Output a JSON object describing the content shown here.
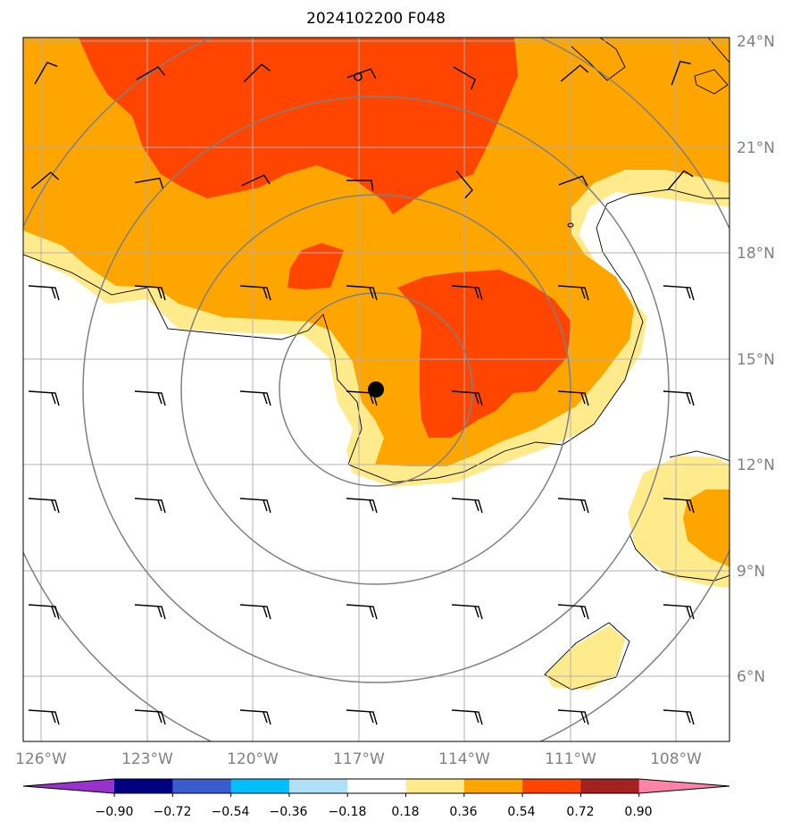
{
  "title": "2024102200 F048",
  "lat_labels": [
    "24°N",
    "21°N",
    "18°N",
    "15°N",
    "12°N",
    "9°N",
    "6°N"
  ],
  "lon_labels": [
    "126°W",
    "123°W",
    "120°W",
    "117°W",
    "114°W",
    "111°W",
    "108°W"
  ],
  "colorbar": {
    "tick_labels": [
      "−0.90",
      "−0.72",
      "−0.54",
      "−0.36",
      "−0.18",
      "0.18",
      "0.36",
      "0.54",
      "0.72",
      "0.90"
    ],
    "colors": [
      "#9932cc",
      "#000080",
      "#3a5ccc",
      "#00bfff",
      "#b0e0f8",
      "#ffffff",
      "#ffeb8c",
      "#ffa500",
      "#ff4500",
      "#a52222",
      "#ff82ab"
    ]
  },
  "map": {
    "extent": {
      "lon_min": -126.5,
      "lon_max": -106.5,
      "lat_min": 4.3,
      "lat_max": 24.1
    },
    "storm_center": {
      "lon": -116.6,
      "lat": 14.1
    },
    "range_rings_deg": [
      2.8,
      5.5,
      8.3,
      11.0
    ]
  }
}
